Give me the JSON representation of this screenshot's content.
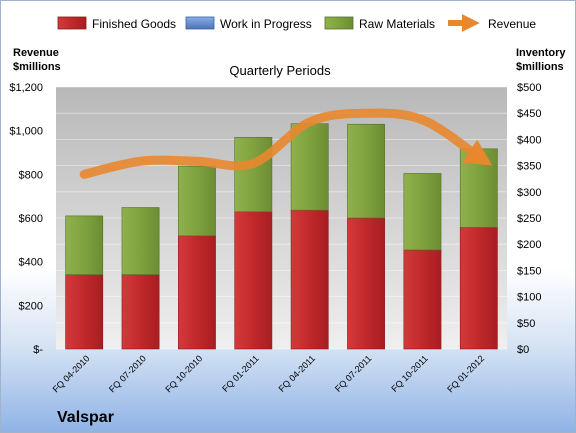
{
  "company": "Valspar",
  "colors": {
    "finished_goods": "#c0282b",
    "work_in_progress": "#5b85c8",
    "raw_materials": "#7fa23f",
    "revenue_line": "#e8872e"
  },
  "chart_data": {
    "type": "bar",
    "stacked": true,
    "title": "Quarterly Periods",
    "left_axis_title": [
      "Revenue",
      "$millions"
    ],
    "right_axis_title": [
      "Inventory",
      "$millions"
    ],
    "categories": [
      "FQ 04-2010",
      "FQ 07-2010",
      "FQ 10-2010",
      "FQ 01-2011",
      "FQ 04-2011",
      "FQ 07-2011",
      "FQ 10-2011",
      "FQ 01-2012"
    ],
    "left_axis": {
      "min": 0,
      "max": 1200,
      "ticks": [
        "$-",
        "$200",
        "$400",
        "$600",
        "$800",
        "$1,000",
        "$1,200"
      ]
    },
    "right_axis": {
      "min": 0,
      "max": 500,
      "ticks": [
        "$0",
        "$50",
        "$100",
        "$150",
        "$200",
        "$250",
        "$300",
        "$350",
        "$400",
        "$450",
        "$500"
      ]
    },
    "legend_position": "top",
    "grid": true,
    "series": [
      {
        "name": "Finished Goods",
        "axis": "right",
        "values": [
          142,
          142,
          216,
          262,
          265,
          250,
          189,
          232
        ]
      },
      {
        "name": "Work in Progress",
        "axis": "right",
        "values": [
          0,
          0,
          0,
          0,
          0,
          0,
          0,
          0
        ]
      },
      {
        "name": "Raw Materials",
        "axis": "right",
        "values": [
          112,
          128,
          133,
          142,
          165,
          179,
          146,
          150
        ]
      },
      {
        "name": "Revenue",
        "axis": "left",
        "type": "line",
        "values": [
          800,
          860,
          860,
          850,
          1040,
          1080,
          1050,
          880
        ]
      }
    ]
  }
}
